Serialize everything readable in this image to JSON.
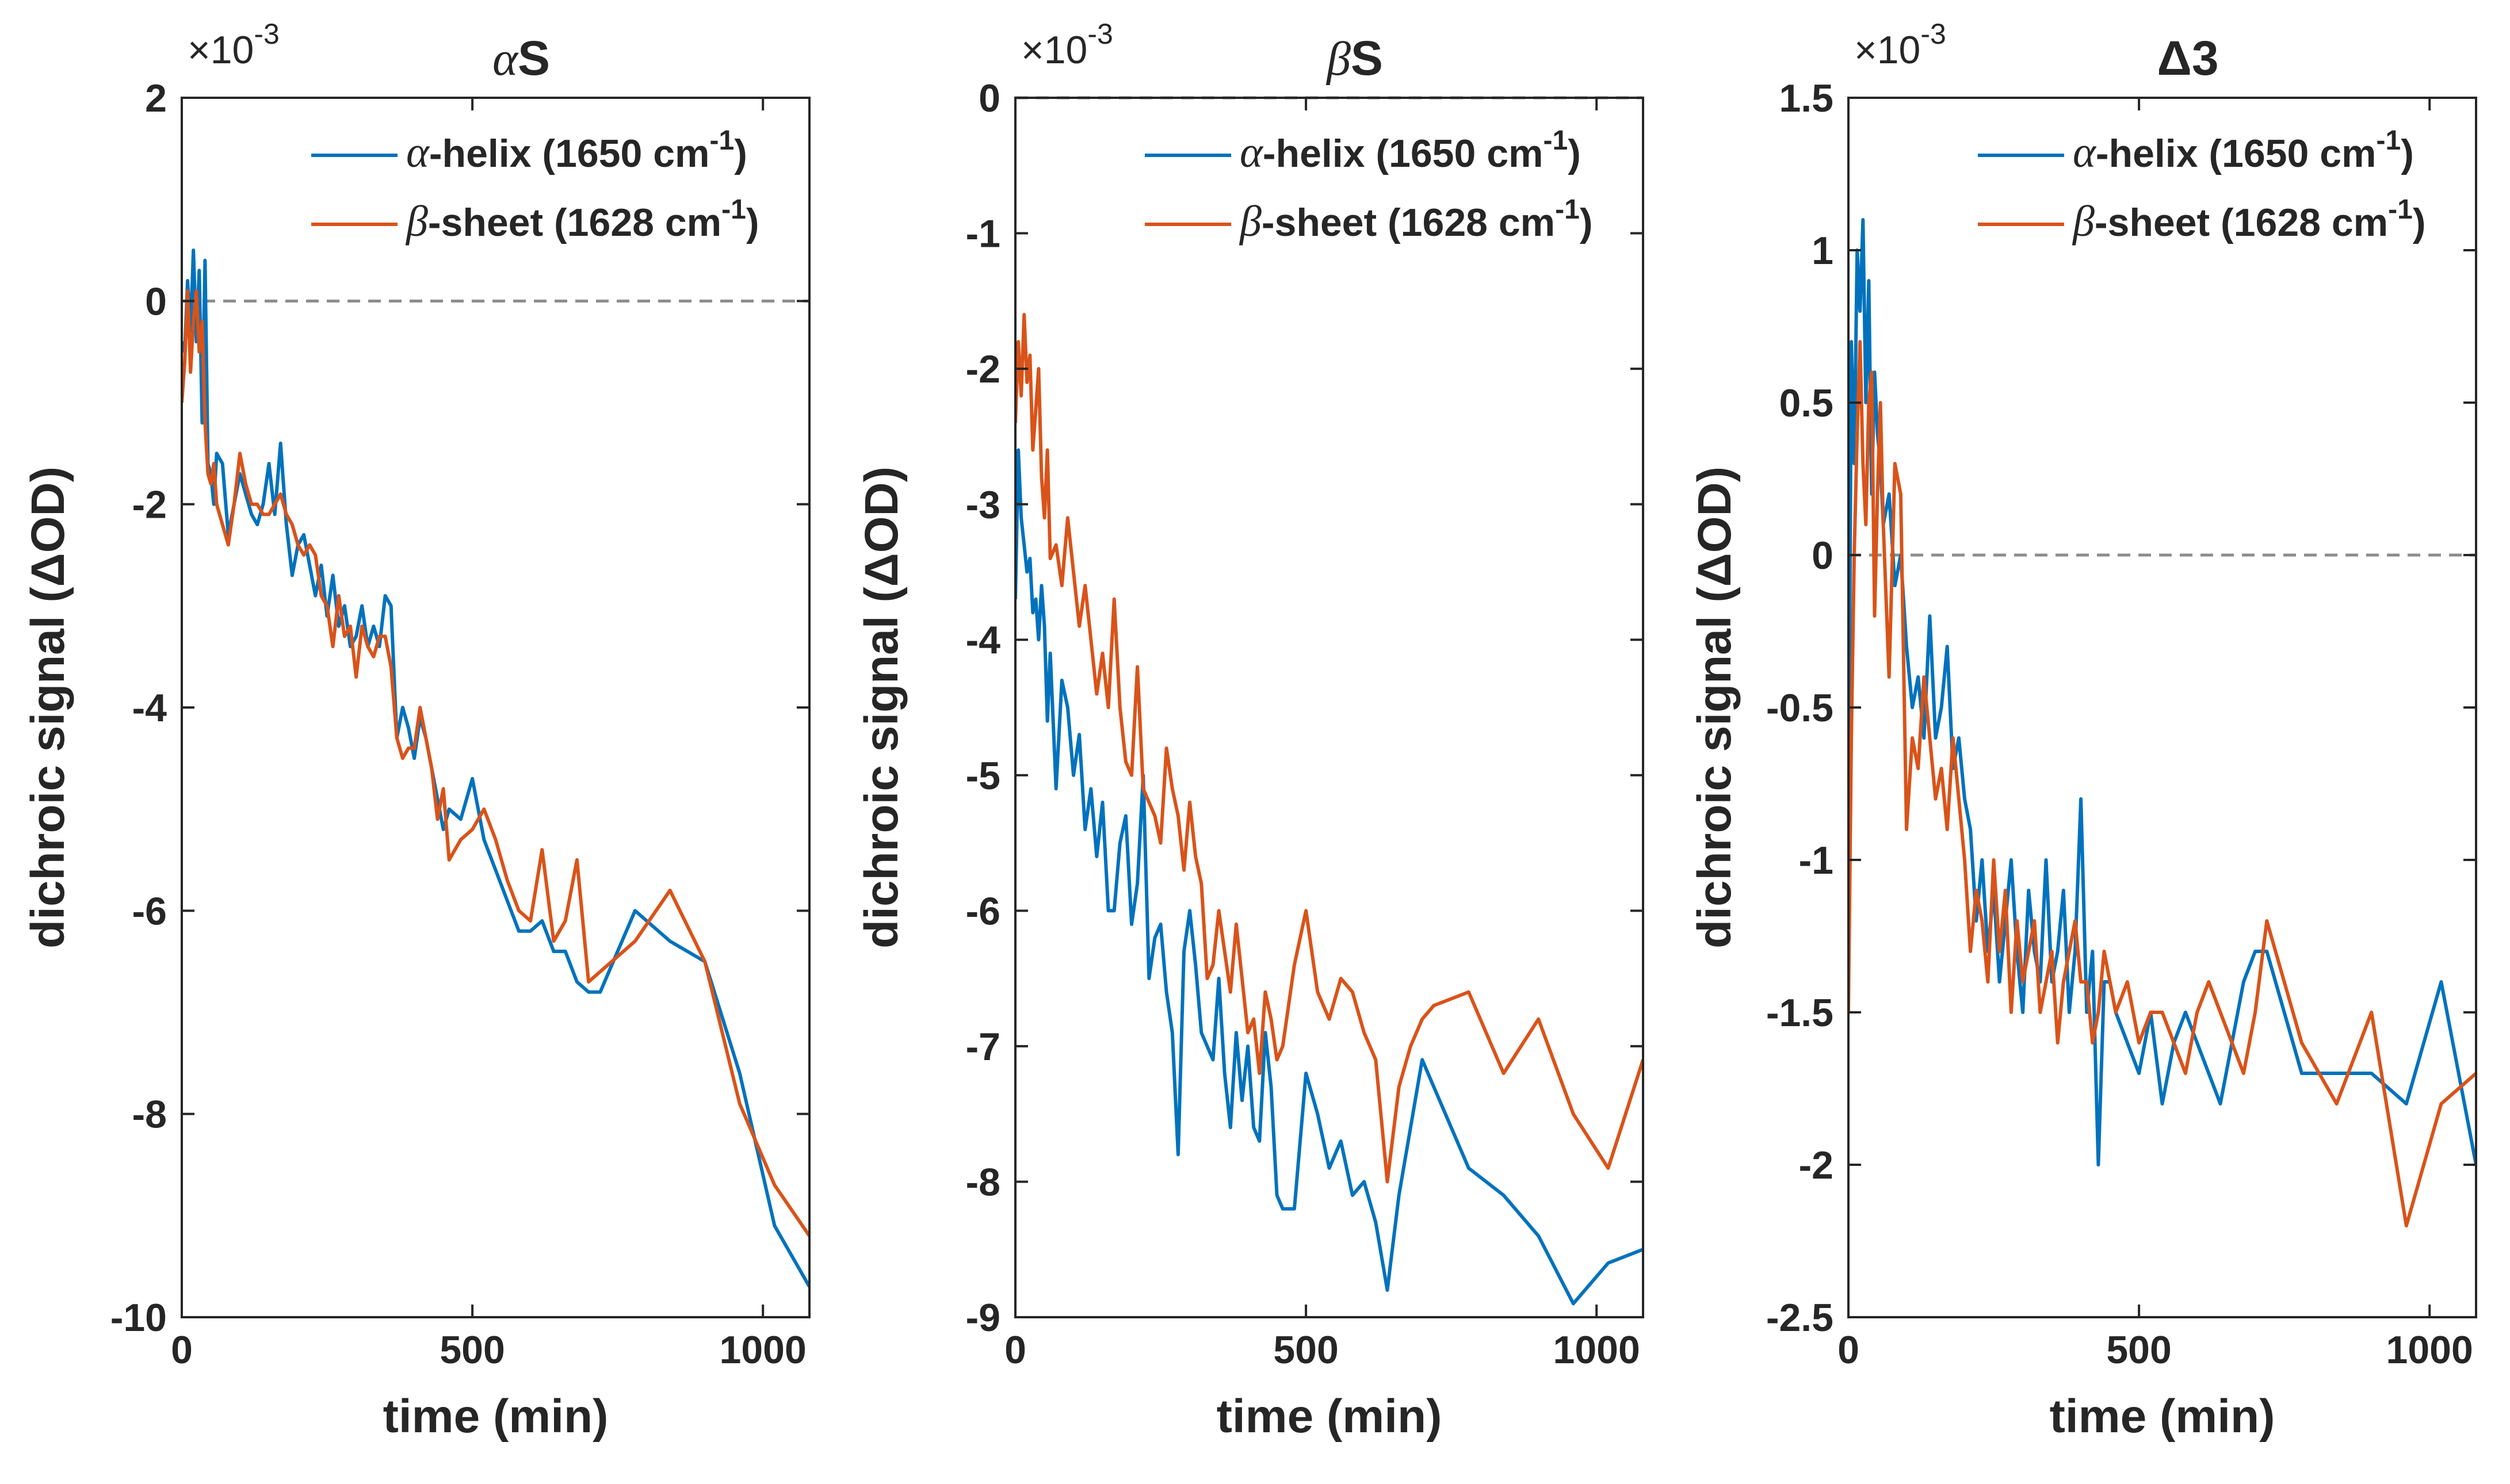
{
  "figure": {
    "background": "#ffffff",
    "axis_color": "#262626",
    "series_colors": [
      "#0072BD",
      "#D95319"
    ],
    "zero_line_color": "#8c8c8c"
  },
  "chart_data": [
    {
      "type": "line",
      "title_symbol": "α",
      "title_text": "S",
      "xlabel": "time (min)",
      "ylabel": "dichroic signal (ΔOD)",
      "exponent_label": "×10",
      "exponent_power": "-3",
      "xlim": [
        0,
        1080
      ],
      "ylim": [
        -10,
        2
      ],
      "xticks": [
        0,
        500,
        1000
      ],
      "yticks": [
        -10,
        -8,
        -6,
        -4,
        -2,
        0,
        2
      ],
      "ytick_labels": [
        "-10",
        "-8",
        "-6",
        "-4",
        "-2",
        "0",
        "2"
      ],
      "reference_line": 0,
      "legend_position": "top-right",
      "series": [
        {
          "name": "α-helix (1650 cm⁻¹)",
          "legend_symbol": "α",
          "legend_text": "-helix (1650 cm",
          "legend_sup": "-1",
          "legend_close": ")",
          "x": [
            0,
            5,
            10,
            15,
            20,
            25,
            30,
            35,
            40,
            45,
            50,
            55,
            60,
            70,
            80,
            90,
            100,
            110,
            120,
            130,
            140,
            150,
            160,
            170,
            180,
            190,
            200,
            210,
            220,
            230,
            240,
            250,
            260,
            270,
            280,
            290,
            300,
            310,
            320,
            330,
            340,
            350,
            360,
            370,
            380,
            390,
            400,
            410,
            420,
            430,
            440,
            450,
            460,
            480,
            500,
            520,
            540,
            560,
            580,
            600,
            620,
            640,
            660,
            680,
            700,
            720,
            780,
            840,
            900,
            960,
            1020,
            1080
          ],
          "values": [
            -0.4,
            -0.5,
            0.2,
            -0.3,
            0.5,
            -0.4,
            0.3,
            -1.2,
            0.4,
            -1.6,
            -1.7,
            -2.0,
            -1.5,
            -1.6,
            -2.3,
            -2.0,
            -1.7,
            -1.9,
            -2.1,
            -2.2,
            -2.0,
            -1.6,
            -2.1,
            -1.4,
            -2.2,
            -2.7,
            -2.4,
            -2.3,
            -2.6,
            -2.9,
            -2.6,
            -3.1,
            -2.7,
            -3.2,
            -3.0,
            -3.4,
            -3.3,
            -3.0,
            -3.4,
            -3.2,
            -3.4,
            -2.9,
            -3.0,
            -4.3,
            -4.0,
            -4.2,
            -4.5,
            -4.1,
            -4.3,
            -4.6,
            -4.9,
            -5.2,
            -5.0,
            -5.1,
            -4.7,
            -5.3,
            -5.6,
            -5.9,
            -6.2,
            -6.2,
            -6.1,
            -6.4,
            -6.4,
            -6.7,
            -6.8,
            -6.8,
            -6.0,
            -6.3,
            -6.5,
            -7.6,
            -9.1,
            -9.7
          ]
        },
        {
          "name": "β-sheet (1628 cm⁻¹)",
          "legend_symbol": "β",
          "legend_text": "-sheet (1628 cm",
          "legend_sup": "-1",
          "legend_close": ")",
          "x": [
            0,
            5,
            10,
            15,
            20,
            25,
            30,
            35,
            40,
            45,
            50,
            55,
            60,
            70,
            80,
            90,
            100,
            110,
            120,
            130,
            140,
            150,
            160,
            170,
            180,
            190,
            200,
            210,
            220,
            230,
            240,
            250,
            260,
            270,
            280,
            290,
            300,
            310,
            320,
            330,
            340,
            350,
            360,
            370,
            380,
            390,
            400,
            410,
            420,
            430,
            440,
            450,
            460,
            480,
            500,
            520,
            540,
            560,
            580,
            600,
            620,
            640,
            660,
            680,
            700,
            720,
            780,
            840,
            900,
            960,
            1020,
            1080
          ],
          "values": [
            -1.0,
            -0.6,
            0.1,
            -0.7,
            -0.2,
            0.1,
            -0.5,
            -0.2,
            -1.2,
            -1.7,
            -1.8,
            -1.6,
            -2.0,
            -2.2,
            -2.4,
            -2.0,
            -1.5,
            -1.8,
            -2.0,
            -2.0,
            -2.1,
            -2.1,
            -2.0,
            -1.9,
            -2.1,
            -2.2,
            -2.4,
            -2.5,
            -2.4,
            -2.5,
            -2.9,
            -3.0,
            -3.4,
            -2.9,
            -3.3,
            -3.2,
            -3.7,
            -3.2,
            -3.4,
            -3.5,
            -3.3,
            -3.3,
            -3.6,
            -4.3,
            -4.5,
            -4.4,
            -4.4,
            -4.0,
            -4.3,
            -4.6,
            -5.1,
            -4.8,
            -5.5,
            -5.3,
            -5.2,
            -5.0,
            -5.3,
            -5.7,
            -6.0,
            -6.1,
            -5.4,
            -6.3,
            -6.1,
            -5.5,
            -6.7,
            -6.6,
            -6.3,
            -5.8,
            -6.5,
            -7.9,
            -8.7,
            -9.2
          ]
        }
      ]
    },
    {
      "type": "line",
      "title_symbol": "β",
      "title_text": "S",
      "xlabel": "time (min)",
      "ylabel": "dichroic signal (ΔOD)",
      "exponent_label": "×10",
      "exponent_power": "-3",
      "xlim": [
        0,
        1080
      ],
      "ylim": [
        -9,
        0
      ],
      "xticks": [
        0,
        500,
        1000
      ],
      "yticks": [
        -9,
        -8,
        -7,
        -6,
        -5,
        -4,
        -3,
        -2,
        -1,
        0
      ],
      "ytick_labels": [
        "-9",
        "-8",
        "-7",
        "-6",
        "-5",
        "-4",
        "-3",
        "-2",
        "-1",
        "0"
      ],
      "reference_line": 0,
      "legend_position": "top-right",
      "series": [
        {
          "name": "α-helix (1650 cm⁻¹)",
          "legend_symbol": "α",
          "legend_text": "-helix (1650 cm",
          "legend_sup": "-1",
          "legend_close": ")",
          "x": [
            0,
            5,
            10,
            15,
            20,
            25,
            30,
            35,
            40,
            45,
            50,
            55,
            60,
            70,
            80,
            90,
            100,
            110,
            120,
            130,
            140,
            150,
            160,
            170,
            180,
            190,
            200,
            210,
            220,
            230,
            240,
            250,
            260,
            270,
            280,
            290,
            300,
            310,
            320,
            330,
            340,
            350,
            360,
            370,
            380,
            390,
            400,
            410,
            420,
            430,
            440,
            450,
            460,
            480,
            500,
            520,
            540,
            560,
            580,
            600,
            620,
            640,
            660,
            680,
            700,
            720,
            780,
            840,
            900,
            960,
            1020,
            1080
          ],
          "values": [
            -3.7,
            -2.6,
            -3.1,
            -3.3,
            -3.5,
            -3.4,
            -3.8,
            -3.7,
            -4.0,
            -3.6,
            -3.9,
            -4.6,
            -4.1,
            -5.1,
            -4.3,
            -4.5,
            -5.0,
            -4.7,
            -5.4,
            -5.1,
            -5.6,
            -5.2,
            -6.0,
            -6.0,
            -5.5,
            -5.3,
            -6.1,
            -5.8,
            -5.0,
            -6.5,
            -6.2,
            -6.1,
            -6.6,
            -6.9,
            -7.8,
            -6.3,
            -6.0,
            -6.4,
            -6.9,
            -7.0,
            -7.1,
            -6.5,
            -7.2,
            -7.6,
            -6.9,
            -7.4,
            -7.0,
            -7.6,
            -7.7,
            -6.9,
            -7.3,
            -8.1,
            -8.2,
            -8.2,
            -7.2,
            -7.5,
            -7.9,
            -7.7,
            -8.1,
            -8.0,
            -8.3,
            -8.8,
            -8.1,
            -7.6,
            -7.1,
            -7.3,
            -7.9,
            -8.1,
            -8.4,
            -8.9,
            -8.6,
            -8.5
          ]
        },
        {
          "name": "β-sheet (1628 cm⁻¹)",
          "legend_symbol": "β",
          "legend_text": "-sheet (1628 cm",
          "legend_sup": "-1",
          "legend_close": ")",
          "x": [
            0,
            5,
            10,
            15,
            20,
            25,
            30,
            35,
            40,
            45,
            50,
            55,
            60,
            70,
            80,
            90,
            100,
            110,
            120,
            130,
            140,
            150,
            160,
            170,
            180,
            190,
            200,
            210,
            220,
            230,
            240,
            250,
            260,
            270,
            280,
            290,
            300,
            310,
            320,
            330,
            340,
            350,
            360,
            370,
            380,
            390,
            400,
            410,
            420,
            430,
            440,
            450,
            460,
            480,
            500,
            520,
            540,
            560,
            580,
            600,
            620,
            640,
            660,
            680,
            700,
            720,
            780,
            840,
            900,
            960,
            1020,
            1080
          ],
          "values": [
            -2.4,
            -1.8,
            -2.2,
            -1.6,
            -2.1,
            -1.9,
            -2.6,
            -2.3,
            -2.0,
            -2.8,
            -3.1,
            -2.6,
            -3.4,
            -3.3,
            -3.6,
            -3.1,
            -3.5,
            -3.9,
            -3.6,
            -4.0,
            -4.4,
            -4.1,
            -4.5,
            -3.7,
            -4.5,
            -4.9,
            -5.0,
            -4.2,
            -5.1,
            -5.2,
            -5.3,
            -5.5,
            -4.8,
            -5.1,
            -5.3,
            -5.7,
            -5.2,
            -5.6,
            -5.8,
            -6.5,
            -6.4,
            -6.0,
            -6.3,
            -6.6,
            -6.1,
            -6.5,
            -6.9,
            -6.8,
            -7.2,
            -6.6,
            -6.8,
            -7.1,
            -7.0,
            -6.4,
            -6.0,
            -6.6,
            -6.8,
            -6.5,
            -6.6,
            -6.9,
            -7.1,
            -8.0,
            -7.3,
            -7.0,
            -6.8,
            -6.7,
            -6.6,
            -7.2,
            -6.8,
            -7.5,
            -7.9,
            -7.1
          ]
        }
      ]
    },
    {
      "type": "line",
      "title_symbol": "Δ",
      "title_text": "3",
      "xlabel": "time (min)",
      "ylabel": "dichroic signal (ΔOD)",
      "exponent_label": "×10",
      "exponent_power": "-3",
      "xlim": [
        0,
        1080
      ],
      "ylim": [
        -2.5,
        1.5
      ],
      "xticks": [
        0,
        500,
        1000
      ],
      "yticks": [
        -2.5,
        -2,
        -1.5,
        -1,
        -0.5,
        0,
        0.5,
        1,
        1.5
      ],
      "ytick_labels": [
        "-2.5",
        "-2",
        "-1.5",
        "-1",
        "-0.5",
        "0",
        "0.5",
        "1",
        "1.5"
      ],
      "reference_line": 0,
      "legend_position": "top-right",
      "series": [
        {
          "name": "α-helix (1650 cm⁻¹)",
          "legend_symbol": "α",
          "legend_text": "-helix (1650 cm",
          "legend_sup": "-1",
          "legend_close": ")",
          "x": [
            0,
            5,
            10,
            15,
            20,
            25,
            30,
            35,
            40,
            45,
            50,
            55,
            60,
            70,
            80,
            90,
            100,
            110,
            120,
            130,
            140,
            150,
            160,
            170,
            180,
            190,
            200,
            210,
            220,
            230,
            240,
            250,
            260,
            270,
            280,
            290,
            300,
            310,
            320,
            330,
            340,
            350,
            360,
            370,
            380,
            390,
            400,
            410,
            420,
            430,
            440,
            450,
            460,
            480,
            500,
            520,
            540,
            560,
            580,
            600,
            620,
            640,
            660,
            680,
            700,
            720,
            780,
            840,
            900,
            960,
            1020,
            1080
          ],
          "values": [
            -1.0,
            0.7,
            0.3,
            1.0,
            0.8,
            1.1,
            0.5,
            0.9,
            0.2,
            0.6,
            0.4,
            0.3,
            0.1,
            0.2,
            -0.1,
            0.0,
            -0.3,
            -0.5,
            -0.4,
            -0.6,
            -0.2,
            -0.6,
            -0.5,
            -0.3,
            -0.7,
            -0.6,
            -0.8,
            -0.9,
            -1.2,
            -1.0,
            -1.3,
            -1.1,
            -1.4,
            -1.2,
            -1.0,
            -1.3,
            -1.5,
            -1.1,
            -1.3,
            -1.4,
            -1.0,
            -1.4,
            -1.3,
            -1.1,
            -1.5,
            -1.3,
            -0.8,
            -1.5,
            -1.3,
            -2.0,
            -1.4,
            -1.4,
            -1.5,
            -1.6,
            -1.7,
            -1.5,
            -1.8,
            -1.6,
            -1.5,
            -1.6,
            -1.7,
            -1.8,
            -1.6,
            -1.4,
            -1.3,
            -1.3,
            -1.7,
            -1.7,
            -1.7,
            -1.8,
            -1.4,
            -2.0
          ]
        },
        {
          "name": "β-sheet (1628 cm⁻¹)",
          "legend_symbol": "β",
          "legend_text": "-sheet (1628 cm",
          "legend_sup": "-1",
          "legend_close": ")",
          "x": [
            0,
            5,
            10,
            15,
            20,
            25,
            30,
            35,
            40,
            45,
            50,
            55,
            60,
            70,
            80,
            90,
            100,
            110,
            120,
            130,
            140,
            150,
            160,
            170,
            180,
            190,
            200,
            210,
            220,
            230,
            240,
            250,
            260,
            270,
            280,
            290,
            300,
            310,
            320,
            330,
            340,
            350,
            360,
            370,
            380,
            390,
            400,
            410,
            420,
            430,
            440,
            450,
            460,
            480,
            500,
            520,
            540,
            560,
            580,
            600,
            620,
            640,
            660,
            680,
            700,
            720,
            780,
            840,
            900,
            960,
            1020,
            1080
          ],
          "values": [
            -1.5,
            -0.6,
            0.0,
            0.4,
            0.7,
            0.3,
            0.1,
            0.5,
            0.6,
            -0.2,
            0.2,
            0.5,
            0.1,
            -0.4,
            0.3,
            0.2,
            -0.9,
            -0.6,
            -0.7,
            -0.4,
            -0.6,
            -0.8,
            -0.7,
            -0.9,
            -0.6,
            -0.8,
            -1.0,
            -1.3,
            -1.1,
            -1.2,
            -1.4,
            -1.0,
            -1.3,
            -1.1,
            -1.5,
            -1.2,
            -1.4,
            -1.3,
            -1.2,
            -1.5,
            -1.4,
            -1.3,
            -1.6,
            -1.4,
            -1.3,
            -1.2,
            -1.4,
            -1.4,
            -1.6,
            -1.5,
            -1.3,
            -1.4,
            -1.5,
            -1.4,
            -1.6,
            -1.5,
            -1.5,
            -1.6,
            -1.7,
            -1.5,
            -1.4,
            -1.5,
            -1.6,
            -1.7,
            -1.5,
            -1.2,
            -1.6,
            -1.8,
            -1.5,
            -2.2,
            -1.8,
            -1.7
          ]
        }
      ]
    }
  ]
}
